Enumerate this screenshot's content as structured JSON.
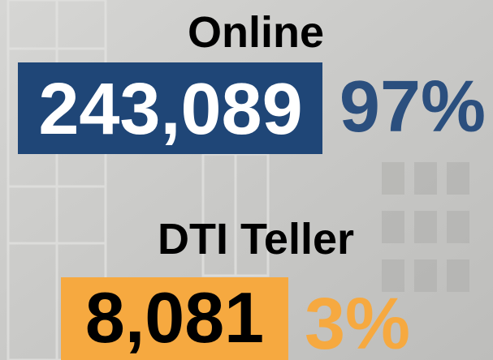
{
  "items": [
    {
      "label": "Online",
      "count": "243,089",
      "percent": "97%"
    },
    {
      "label": "DTI Teller",
      "count": "8,081",
      "percent": "3%"
    }
  ]
}
